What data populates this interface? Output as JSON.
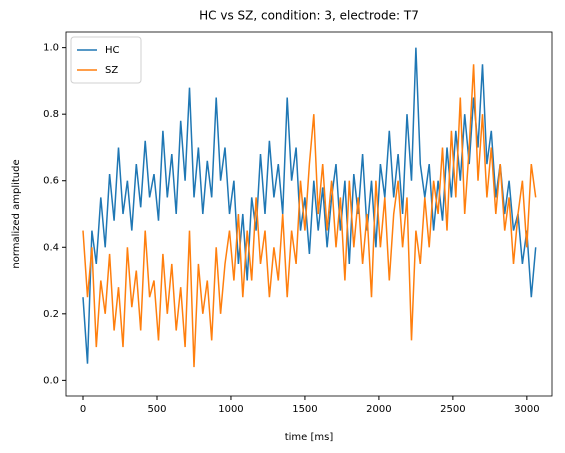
{
  "chart_data": {
    "type": "line",
    "title": "HC vs SZ, condition: 3, electrode: T7",
    "x_label": "time [ms]",
    "y_label": "normalized amplitude",
    "x": [
      0,
      30,
      60,
      90,
      120,
      150,
      180,
      210,
      240,
      270,
      300,
      330,
      360,
      390,
      420,
      450,
      480,
      510,
      540,
      570,
      600,
      630,
      660,
      690,
      720,
      750,
      780,
      810,
      840,
      870,
      900,
      930,
      960,
      990,
      1020,
      1050,
      1080,
      1110,
      1140,
      1170,
      1200,
      1230,
      1260,
      1290,
      1320,
      1350,
      1380,
      1410,
      1440,
      1470,
      1500,
      1530,
      1560,
      1590,
      1620,
      1650,
      1680,
      1710,
      1740,
      1770,
      1800,
      1830,
      1860,
      1890,
      1920,
      1950,
      1980,
      2010,
      2040,
      2070,
      2100,
      2130,
      2160,
      2190,
      2220,
      2250,
      2280,
      2310,
      2340,
      2370,
      2400,
      2430,
      2460,
      2490,
      2520,
      2550,
      2580,
      2610,
      2640,
      2670,
      2700,
      2730,
      2760,
      2790,
      2820,
      2850,
      2880,
      2910,
      2940,
      2970,
      3000,
      3030,
      3060
    ],
    "series": [
      {
        "name": "HC",
        "color": "#1f77b4",
        "values": [
          0.25,
          0.05,
          0.45,
          0.35,
          0.55,
          0.4,
          0.62,
          0.48,
          0.7,
          0.5,
          0.6,
          0.45,
          0.65,
          0.52,
          0.72,
          0.55,
          0.62,
          0.48,
          0.75,
          0.55,
          0.68,
          0.5,
          0.78,
          0.6,
          0.88,
          0.55,
          0.7,
          0.5,
          0.66,
          0.55,
          0.85,
          0.6,
          0.7,
          0.5,
          0.6,
          0.35,
          0.5,
          0.3,
          0.55,
          0.45,
          0.68,
          0.5,
          0.72,
          0.55,
          0.65,
          0.5,
          0.85,
          0.6,
          0.7,
          0.45,
          0.55,
          0.38,
          0.6,
          0.45,
          0.58,
          0.4,
          0.55,
          0.65,
          0.45,
          0.6,
          0.35,
          0.62,
          0.5,
          0.68,
          0.45,
          0.6,
          0.4,
          0.65,
          0.55,
          0.75,
          0.55,
          0.68,
          0.5,
          0.8,
          0.6,
          1.0,
          0.65,
          0.55,
          0.65,
          0.45,
          0.6,
          0.48,
          0.7,
          0.55,
          0.75,
          0.6,
          0.8,
          0.65,
          0.85,
          0.7,
          0.95,
          0.65,
          0.75,
          0.55,
          0.65,
          0.5,
          0.6,
          0.45,
          0.5,
          0.35,
          0.45,
          0.25,
          0.4
        ]
      },
      {
        "name": "SZ",
        "color": "#ff7f0e",
        "values": [
          0.45,
          0.25,
          0.4,
          0.1,
          0.3,
          0.2,
          0.38,
          0.15,
          0.28,
          0.1,
          0.4,
          0.22,
          0.33,
          0.15,
          0.45,
          0.25,
          0.3,
          0.12,
          0.38,
          0.2,
          0.35,
          0.15,
          0.28,
          0.1,
          0.45,
          0.04,
          0.35,
          0.2,
          0.3,
          0.12,
          0.4,
          0.2,
          0.35,
          0.45,
          0.3,
          0.5,
          0.25,
          0.45,
          0.3,
          0.55,
          0.35,
          0.45,
          0.25,
          0.4,
          0.3,
          0.5,
          0.25,
          0.45,
          0.35,
          0.6,
          0.45,
          0.65,
          0.8,
          0.5,
          0.65,
          0.45,
          0.6,
          0.4,
          0.55,
          0.3,
          0.6,
          0.4,
          0.55,
          0.35,
          0.5,
          0.25,
          0.6,
          0.4,
          0.55,
          0.3,
          0.5,
          0.6,
          0.4,
          0.55,
          0.12,
          0.45,
          0.35,
          0.55,
          0.4,
          0.6,
          0.5,
          0.7,
          0.45,
          0.75,
          0.55,
          0.85,
          0.5,
          0.7,
          0.95,
          0.6,
          0.8,
          0.55,
          0.7,
          0.5,
          0.65,
          0.45,
          0.55,
          0.35,
          0.5,
          0.6,
          0.4,
          0.65,
          0.55
        ]
      }
    ],
    "xlim": [
      -115,
      3170
    ],
    "ylim": [
      -0.047,
      1.047
    ],
    "xticks": [
      0,
      500,
      1000,
      1500,
      2000,
      2500,
      3000
    ],
    "yticks": [
      {
        "value": 0,
        "label": "0.0"
      },
      {
        "value": 0.2,
        "label": "0.2"
      },
      {
        "value": 0.4,
        "label": "0.4"
      },
      {
        "value": 0.6,
        "label": "0.6"
      },
      {
        "value": 0.8,
        "label": "0.8"
      },
      {
        "value": 1.0,
        "label": "1.0"
      }
    ],
    "legend": "upper left"
  }
}
